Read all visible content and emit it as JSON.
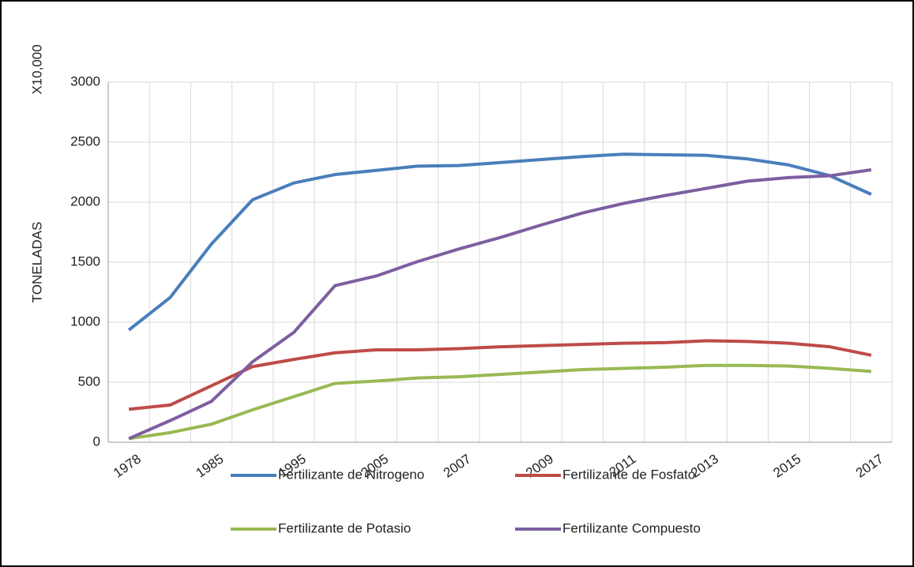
{
  "chart_data": {
    "type": "line",
    "ylabel": "TONELADAS",
    "unit_label": "X10,000",
    "categories": [
      "1978",
      null,
      "1985",
      null,
      "1995",
      null,
      "2005",
      null,
      "2007",
      null,
      "2009",
      null,
      "2011",
      null,
      "2013",
      null,
      "2015",
      null,
      "2017"
    ],
    "series": [
      {
        "name": "Fertilizante de Nitrogeno",
        "color": "#4a7ebb",
        "values": [
          935,
          1205,
          1650,
          2020,
          2160,
          2230,
          2265,
          2300,
          2305,
          2330,
          2355,
          2380,
          2400,
          2395,
          2390,
          2360,
          2310,
          2220,
          2065
        ]
      },
      {
        "name": "Fertilizante de Fosfato",
        "color": "#be4b48",
        "values": [
          275,
          310,
          470,
          630,
          690,
          745,
          770,
          770,
          780,
          795,
          805,
          815,
          825,
          830,
          845,
          840,
          825,
          795,
          725
        ]
      },
      {
        "name": "Fertilizante de Potasio",
        "color": "#98b954",
        "values": [
          30,
          80,
          150,
          270,
          380,
          490,
          510,
          535,
          545,
          565,
          585,
          605,
          615,
          625,
          640,
          640,
          635,
          615,
          590
        ]
      },
      {
        "name": "Fertilizante Compuesto",
        "color": "#7d5fa0",
        "values": [
          30,
          180,
          340,
          670,
          915,
          1305,
          1385,
          1505,
          1610,
          1705,
          1810,
          1910,
          1990,
          2055,
          2115,
          2175,
          2205,
          2220,
          2270
        ]
      }
    ],
    "ylim": [
      0,
      3000
    ],
    "yticks": [
      0,
      500,
      1000,
      1500,
      2000,
      2500,
      3000
    ],
    "grid": true,
    "legend": "bottom"
  }
}
